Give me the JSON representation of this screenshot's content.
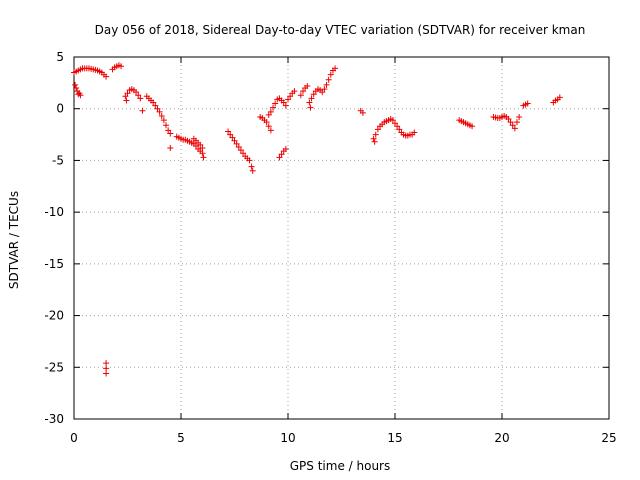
{
  "chart_data": {
    "type": "scatter",
    "title": "Day 056 of 2018, Sidereal Day-to-day VTEC variation (SDTVAR) for receiver kman",
    "xlabel": "GPS time / hours",
    "ylabel": "SDTVAR / TECUs",
    "xlim": [
      0,
      25
    ],
    "ylim": [
      -30,
      5
    ],
    "xticks": [
      0,
      5,
      10,
      15,
      20,
      25
    ],
    "yticks": [
      -30,
      -25,
      -20,
      -15,
      -10,
      -5,
      0,
      5
    ],
    "xtick_labels": [
      "0",
      "5",
      "10",
      "15",
      "20",
      "25"
    ],
    "ytick_labels": [
      "-30",
      "-25",
      "-20",
      "-15",
      "-10",
      "-5",
      "0",
      "5"
    ],
    "grid": true,
    "marker": "plus",
    "color": "#ee0000",
    "series": [
      {
        "name": "SDTVAR",
        "points": [
          [
            0.0,
            3.5
          ],
          [
            0.1,
            3.6
          ],
          [
            0.2,
            3.7
          ],
          [
            0.3,
            3.8
          ],
          [
            0.4,
            3.9
          ],
          [
            0.5,
            3.9
          ],
          [
            0.6,
            3.9
          ],
          [
            0.7,
            3.9
          ],
          [
            0.8,
            3.85
          ],
          [
            0.9,
            3.8
          ],
          [
            1.0,
            3.75
          ],
          [
            1.1,
            3.7
          ],
          [
            1.2,
            3.6
          ],
          [
            1.3,
            3.5
          ],
          [
            1.4,
            3.3
          ],
          [
            1.5,
            3.1
          ],
          [
            0.05,
            2.3
          ],
          [
            0.1,
            2.0
          ],
          [
            0.15,
            1.7
          ],
          [
            0.2,
            1.4
          ],
          [
            0.25,
            1.5
          ],
          [
            0.3,
            1.3
          ],
          [
            1.8,
            3.8
          ],
          [
            1.9,
            4.0
          ],
          [
            2.0,
            4.1
          ],
          [
            2.1,
            4.2
          ],
          [
            2.2,
            4.1
          ],
          [
            1.5,
            -24.6
          ],
          [
            1.5,
            -25.1
          ],
          [
            1.5,
            -25.6
          ],
          [
            2.4,
            1.2
          ],
          [
            2.5,
            1.5
          ],
          [
            2.6,
            1.8
          ],
          [
            2.7,
            1.9
          ],
          [
            2.8,
            1.8
          ],
          [
            2.9,
            1.6
          ],
          [
            3.0,
            1.3
          ],
          [
            3.1,
            1.0
          ],
          [
            2.45,
            0.8
          ],
          [
            3.2,
            -0.2
          ],
          [
            3.4,
            1.2
          ],
          [
            3.5,
            1.0
          ],
          [
            3.6,
            0.8
          ],
          [
            3.7,
            0.6
          ],
          [
            3.8,
            0.3
          ],
          [
            3.9,
            0.0
          ],
          [
            4.0,
            -0.3
          ],
          [
            4.1,
            -0.7
          ],
          [
            4.2,
            -1.1
          ],
          [
            4.3,
            -1.6
          ],
          [
            4.4,
            -2.1
          ],
          [
            4.5,
            -2.4
          ],
          [
            4.5,
            -3.8
          ],
          [
            4.8,
            -2.7
          ],
          [
            4.9,
            -2.8
          ],
          [
            5.0,
            -2.9
          ],
          [
            5.1,
            -3.0
          ],
          [
            5.2,
            -3.0
          ],
          [
            5.3,
            -3.1
          ],
          [
            5.4,
            -3.2
          ],
          [
            5.5,
            -3.3
          ],
          [
            5.6,
            -3.4
          ],
          [
            5.7,
            -3.6
          ],
          [
            5.8,
            -3.9
          ],
          [
            5.9,
            -4.1
          ],
          [
            6.0,
            -4.3
          ],
          [
            6.05,
            -4.7
          ],
          [
            5.6,
            -2.9
          ],
          [
            5.7,
            -3.1
          ],
          [
            5.8,
            -3.3
          ],
          [
            5.9,
            -3.5
          ],
          [
            6.0,
            -3.8
          ],
          [
            7.2,
            -2.2
          ],
          [
            7.3,
            -2.5
          ],
          [
            7.4,
            -2.8
          ],
          [
            7.5,
            -3.1
          ],
          [
            7.6,
            -3.4
          ],
          [
            7.7,
            -3.7
          ],
          [
            7.8,
            -4.0
          ],
          [
            7.9,
            -4.3
          ],
          [
            8.0,
            -4.6
          ],
          [
            8.1,
            -4.8
          ],
          [
            8.2,
            -5.0
          ],
          [
            8.3,
            -5.6
          ],
          [
            8.35,
            -6.0
          ],
          [
            8.7,
            -0.8
          ],
          [
            8.8,
            -0.9
          ],
          [
            8.9,
            -1.1
          ],
          [
            9.0,
            -1.3
          ],
          [
            9.1,
            -1.7
          ],
          [
            9.2,
            -2.1
          ],
          [
            9.1,
            -0.6
          ],
          [
            9.2,
            -0.3
          ],
          [
            9.3,
            0.1
          ],
          [
            9.4,
            0.5
          ],
          [
            9.5,
            0.9
          ],
          [
            9.6,
            1.0
          ],
          [
            9.7,
            0.8
          ],
          [
            9.8,
            0.6
          ],
          [
            9.9,
            0.3
          ],
          [
            9.6,
            -4.7
          ],
          [
            9.7,
            -4.4
          ],
          [
            9.8,
            -4.1
          ],
          [
            9.9,
            -3.9
          ],
          [
            10.0,
            0.9
          ],
          [
            10.1,
            1.2
          ],
          [
            10.2,
            1.5
          ],
          [
            10.3,
            1.7
          ],
          [
            10.6,
            1.3
          ],
          [
            10.7,
            1.7
          ],
          [
            10.8,
            2.0
          ],
          [
            10.9,
            2.2
          ],
          [
            11.0,
            0.6
          ],
          [
            11.05,
            0.1
          ],
          [
            11.1,
            1.0
          ],
          [
            11.2,
            1.4
          ],
          [
            11.3,
            1.7
          ],
          [
            11.4,
            1.9
          ],
          [
            11.5,
            1.8
          ],
          [
            11.6,
            1.6
          ],
          [
            11.7,
            1.9
          ],
          [
            11.8,
            2.3
          ],
          [
            11.9,
            2.8
          ],
          [
            12.0,
            3.3
          ],
          [
            12.1,
            3.7
          ],
          [
            12.2,
            3.9
          ],
          [
            13.4,
            -0.2
          ],
          [
            13.5,
            -0.4
          ],
          [
            14.0,
            -2.9
          ],
          [
            14.05,
            -3.2
          ],
          [
            14.1,
            -2.5
          ],
          [
            14.2,
            -2.0
          ],
          [
            14.3,
            -1.7
          ],
          [
            14.4,
            -1.5
          ],
          [
            14.5,
            -1.3
          ],
          [
            14.6,
            -1.2
          ],
          [
            14.7,
            -1.1
          ],
          [
            14.8,
            -1.0
          ],
          [
            14.9,
            -1.1
          ],
          [
            15.0,
            -1.4
          ],
          [
            15.1,
            -1.7
          ],
          [
            15.2,
            -2.0
          ],
          [
            15.3,
            -2.3
          ],
          [
            15.4,
            -2.5
          ],
          [
            15.5,
            -2.6
          ],
          [
            15.6,
            -2.6
          ],
          [
            15.7,
            -2.5
          ],
          [
            15.8,
            -2.5
          ],
          [
            15.9,
            -2.3
          ],
          [
            18.0,
            -1.1
          ],
          [
            18.1,
            -1.2
          ],
          [
            18.2,
            -1.3
          ],
          [
            18.3,
            -1.4
          ],
          [
            18.4,
            -1.5
          ],
          [
            18.5,
            -1.6
          ],
          [
            18.6,
            -1.7
          ],
          [
            19.6,
            -0.8
          ],
          [
            19.7,
            -0.85
          ],
          [
            19.8,
            -0.9
          ],
          [
            19.9,
            -0.9
          ],
          [
            20.0,
            -0.8
          ],
          [
            20.1,
            -0.7
          ],
          [
            20.2,
            -0.8
          ],
          [
            20.3,
            -1.0
          ],
          [
            20.4,
            -1.3
          ],
          [
            20.5,
            -1.6
          ],
          [
            20.6,
            -1.9
          ],
          [
            20.7,
            -1.3
          ],
          [
            20.8,
            -0.8
          ],
          [
            21.0,
            0.3
          ],
          [
            21.1,
            0.4
          ],
          [
            21.2,
            0.5
          ],
          [
            22.4,
            0.6
          ],
          [
            22.5,
            0.8
          ],
          [
            22.6,
            0.9
          ],
          [
            22.7,
            1.1
          ]
        ]
      }
    ]
  }
}
